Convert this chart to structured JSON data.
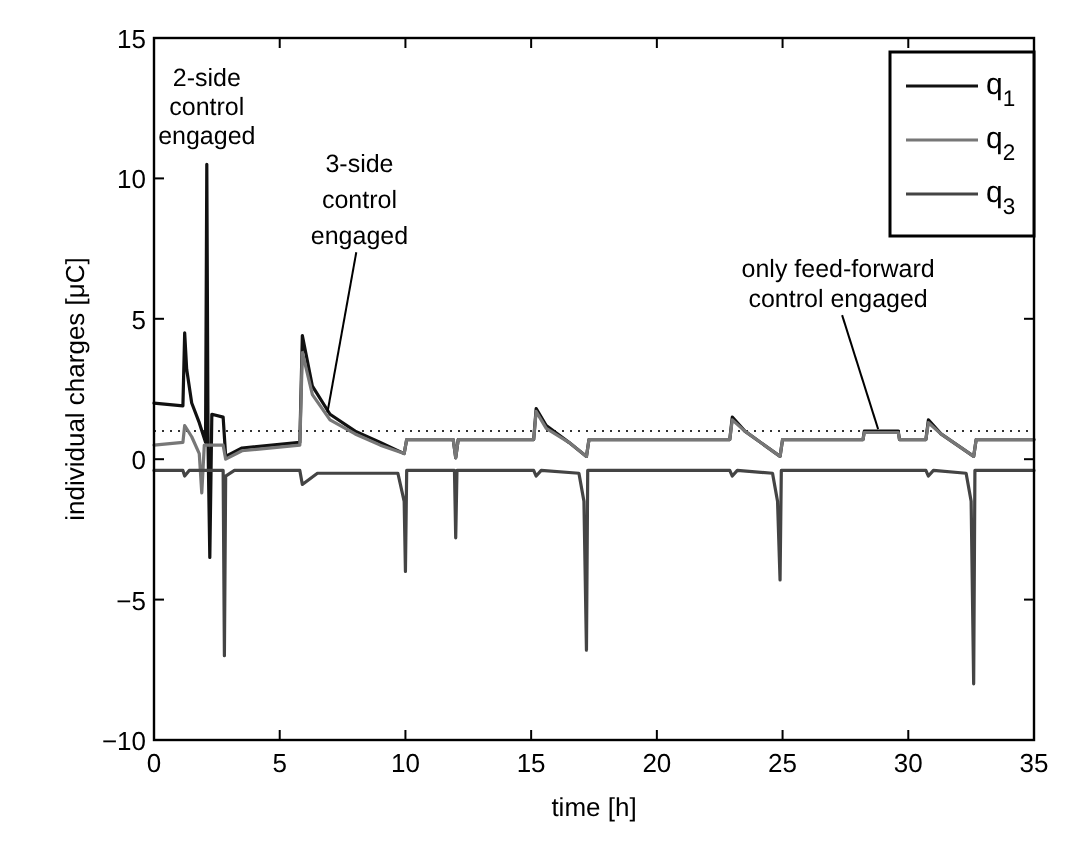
{
  "chart_data": {
    "type": "line",
    "xlabel": "time [h]",
    "ylabel": "individual charges [μC]",
    "xlim": [
      0,
      35
    ],
    "ylim": [
      -10,
      15
    ],
    "xticks": [
      0,
      5,
      10,
      15,
      20,
      25,
      30,
      35
    ],
    "yticks": [
      -10,
      -5,
      0,
      5,
      10,
      15
    ],
    "grid": false,
    "legend": "top right",
    "line_style": "solid",
    "marker": "none",
    "ref_lines": [
      {
        "axis": "y",
        "value": 1,
        "line_style": "dotted",
        "color": "#333333"
      }
    ],
    "annotations": [
      {
        "text": "2-side\ncontrol\nengaged",
        "x": 2.1,
        "y": 10.5
      },
      {
        "text": "3-side\ncontrol\nengaged",
        "x": 6.9,
        "y": 1.6
      },
      {
        "text": "only feed-forward\ncontrol engaged",
        "x": 28.8,
        "y": 1.0
      }
    ],
    "series": [
      {
        "name": "q$_{1}$",
        "color": "#111111",
        "x": [
          0,
          1.15,
          1.22,
          1.3,
          1.5,
          1.8,
          2.05,
          2.1,
          2.15,
          2.22,
          2.3,
          2.75,
          2.85,
          3.5,
          5.8,
          5.9,
          6.3,
          7,
          8,
          9,
          9.95,
          10.05,
          11.9,
          12,
          12.1,
          15.1,
          15.2,
          15.6,
          16.5,
          17.2,
          17.3,
          22.9,
          23,
          23.5,
          24.9,
          25,
          28.2,
          28.25,
          29.6,
          29.65,
          30.7,
          30.8,
          31.3,
          32.6,
          32.7,
          35
        ],
        "values": [
          2.0,
          1.9,
          4.5,
          3.2,
          2.0,
          1.3,
          0.6,
          10.5,
          0.5,
          -3.5,
          1.6,
          1.5,
          0.1,
          0.4,
          0.6,
          4.4,
          2.6,
          1.6,
          1.0,
          0.6,
          0.2,
          0.7,
          0.7,
          0.05,
          0.7,
          0.7,
          1.8,
          1.2,
          0.6,
          0.1,
          0.7,
          0.7,
          1.5,
          1.0,
          0.1,
          0.7,
          0.7,
          1.0,
          1.0,
          0.7,
          0.7,
          1.4,
          0.9,
          0.1,
          0.7,
          0.7
        ]
      },
      {
        "name": "q$_{2}$",
        "color": "#777777",
        "x": [
          0,
          1.15,
          1.22,
          1.5,
          1.8,
          1.9,
          2.0,
          2.75,
          2.85,
          3.5,
          5.8,
          5.9,
          6.3,
          7,
          8,
          9,
          9.95,
          10.05,
          11.9,
          12,
          12.1,
          15.1,
          15.2,
          15.6,
          16.5,
          17.2,
          17.3,
          22.9,
          23,
          23.5,
          24.9,
          25,
          28.2,
          28.25,
          29.6,
          29.65,
          30.7,
          30.8,
          31.3,
          32.6,
          32.7,
          35
        ],
        "values": [
          0.5,
          0.6,
          1.2,
          0.8,
          0.2,
          -1.2,
          0.5,
          0.5,
          0.0,
          0.3,
          0.5,
          3.8,
          2.3,
          1.4,
          0.9,
          0.5,
          0.2,
          0.7,
          0.7,
          0.05,
          0.7,
          0.7,
          1.7,
          1.1,
          0.6,
          0.1,
          0.7,
          0.7,
          1.4,
          1.0,
          0.1,
          0.7,
          0.7,
          0.95,
          0.95,
          0.7,
          0.7,
          1.3,
          0.9,
          0.1,
          0.7,
          0.7
        ]
      },
      {
        "name": "q$_{3}$",
        "color": "#444444",
        "x": [
          0,
          1.15,
          1.22,
          1.4,
          2.75,
          2.8,
          2.85,
          3.2,
          5.8,
          5.9,
          6.5,
          9.7,
          9.95,
          10.0,
          10.05,
          11.95,
          12.0,
          12.05,
          15.1,
          15.2,
          15.4,
          16.9,
          17.1,
          17.2,
          17.25,
          22.9,
          23,
          23.2,
          24.6,
          24.8,
          24.9,
          24.95,
          30.7,
          30.8,
          31,
          32.3,
          32.5,
          32.6,
          32.65,
          35
        ],
        "values": [
          -0.4,
          -0.4,
          -0.6,
          -0.4,
          -0.4,
          -7.0,
          -0.6,
          -0.4,
          -0.4,
          -0.9,
          -0.5,
          -0.5,
          -1.5,
          -4.0,
          -0.4,
          -0.4,
          -2.8,
          -0.4,
          -0.4,
          -0.6,
          -0.4,
          -0.5,
          -1.5,
          -6.8,
          -0.4,
          -0.4,
          -0.6,
          -0.4,
          -0.5,
          -1.5,
          -4.3,
          -0.4,
          -0.4,
          -0.6,
          -0.4,
          -0.5,
          -1.5,
          -8.0,
          -0.4,
          -0.4
        ]
      }
    ]
  }
}
